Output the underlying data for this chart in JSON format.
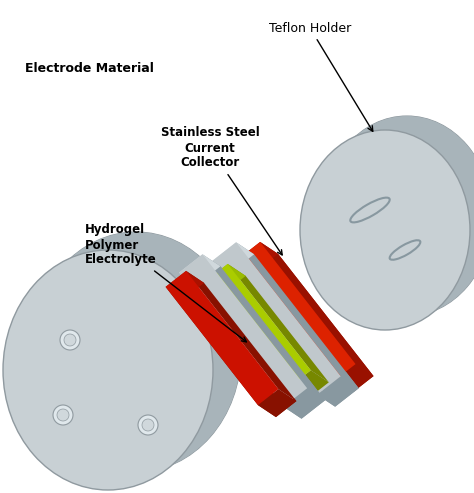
{
  "background_color": "#ffffff",
  "labels": {
    "teflon_holder": "Teflon Holder",
    "electrode_material": "Electrode Material",
    "stainless_steel": "Stainless Steel\nCurrent\nCollector",
    "hydrogel": "Hydrogel\nPolymer\nElectrolyte"
  },
  "colors": {
    "disk_face": "#c8d0d4",
    "disk_side": "#a8b4ba",
    "disk_edge": "#909aa0",
    "disk_dark": "#8898a0",
    "red_front": "#cc1100",
    "red_side": "#881100",
    "red_top": "#aa1100",
    "red2_front": "#dd2200",
    "red2_side": "#991100",
    "yellow_front": "#aacc00",
    "yellow_side": "#778800",
    "yellow_top": "#99bb00",
    "steel_front": "#c0c8cc",
    "steel_side": "#8898a0",
    "steel_top": "#d0d8dc",
    "text_color": "#000000"
  },
  "figsize": [
    4.74,
    4.93
  ],
  "dpi": 100
}
